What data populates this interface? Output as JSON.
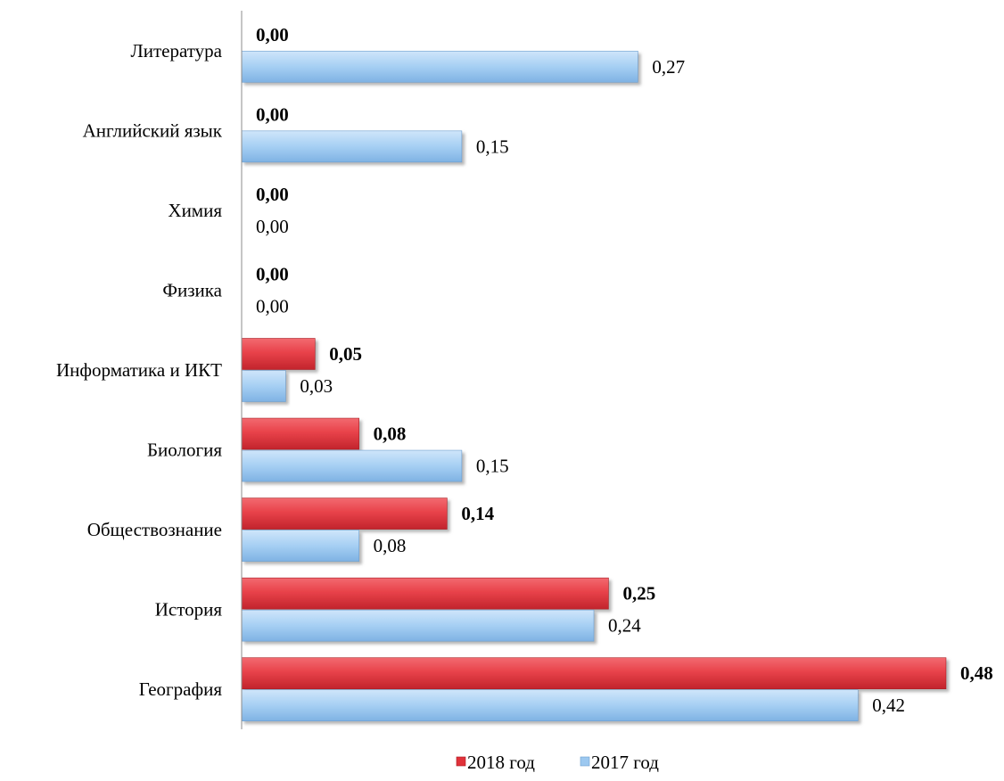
{
  "chart_data": {
    "type": "bar",
    "orientation": "horizontal",
    "categories": [
      "Литература",
      "Английский язык",
      "Химия",
      "Физика",
      "Информатика и ИКТ",
      "Биология",
      "Обществознание",
      "История",
      "География"
    ],
    "series": [
      {
        "name": "2018 год",
        "color": "#e8424a",
        "values": [
          0.0,
          0.0,
          0.0,
          0.0,
          0.05,
          0.08,
          0.14,
          0.25,
          0.48
        ],
        "labels": [
          "0,00",
          "0,00",
          "0,00",
          "0,00",
          "0,05",
          "0,08",
          "0,14",
          "0,25",
          "0,48"
        ],
        "label_bold": true
      },
      {
        "name": "2017 год",
        "color": "#9cc8f0",
        "values": [
          0.27,
          0.15,
          0.0,
          0.0,
          0.03,
          0.15,
          0.08,
          0.24,
          0.42
        ],
        "labels": [
          "0,27",
          "0,15",
          "0,00",
          "0,00",
          "0,03",
          "0,15",
          "0,08",
          "0,24",
          "0,42"
        ],
        "label_bold": false
      }
    ],
    "xlim": [
      0,
      0.48
    ],
    "grid": false,
    "legend_position": "bottom"
  }
}
